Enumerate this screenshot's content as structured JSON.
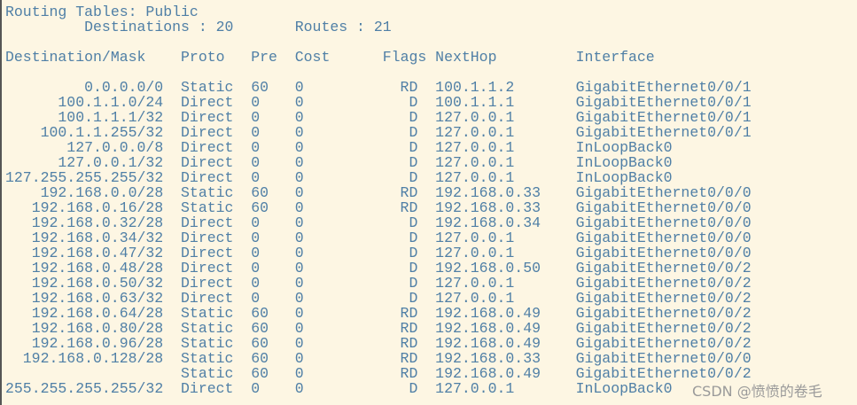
{
  "title": "Routing Tables: Public",
  "summary": {
    "destinations_label": "Destinations : 20",
    "routes_label": "Routes : 21"
  },
  "headers": {
    "dest": "Destination/Mask",
    "proto": "Proto",
    "pre": "Pre",
    "cost": "Cost",
    "flags": "Flags",
    "nexthop": "NextHop",
    "iface": "Interface"
  },
  "rows": [
    [
      "0.0.0.0/0",
      "Static",
      "60",
      "0",
      "RD",
      "100.1.1.2",
      "GigabitEthernet0/0/1"
    ],
    [
      "100.1.1.0/24",
      "Direct",
      "0",
      "0",
      "D",
      "100.1.1.1",
      "GigabitEthernet0/0/1"
    ],
    [
      "100.1.1.1/32",
      "Direct",
      "0",
      "0",
      "D",
      "127.0.0.1",
      "GigabitEthernet0/0/1"
    ],
    [
      "100.1.1.255/32",
      "Direct",
      "0",
      "0",
      "D",
      "127.0.0.1",
      "GigabitEthernet0/0/1"
    ],
    [
      "127.0.0.0/8",
      "Direct",
      "0",
      "0",
      "D",
      "127.0.0.1",
      "InLoopBack0"
    ],
    [
      "127.0.0.1/32",
      "Direct",
      "0",
      "0",
      "D",
      "127.0.0.1",
      "InLoopBack0"
    ],
    [
      "127.255.255.255/32",
      "Direct",
      "0",
      "0",
      "D",
      "127.0.0.1",
      "InLoopBack0"
    ],
    [
      "192.168.0.0/28",
      "Static",
      "60",
      "0",
      "RD",
      "192.168.0.33",
      "GigabitEthernet0/0/0"
    ],
    [
      "192.168.0.16/28",
      "Static",
      "60",
      "0",
      "RD",
      "192.168.0.33",
      "GigabitEthernet0/0/0"
    ],
    [
      "192.168.0.32/28",
      "Direct",
      "0",
      "0",
      "D",
      "192.168.0.34",
      "GigabitEthernet0/0/0"
    ],
    [
      "192.168.0.34/32",
      "Direct",
      "0",
      "0",
      "D",
      "127.0.0.1",
      "GigabitEthernet0/0/0"
    ],
    [
      "192.168.0.47/32",
      "Direct",
      "0",
      "0",
      "D",
      "127.0.0.1",
      "GigabitEthernet0/0/0"
    ],
    [
      "192.168.0.48/28",
      "Direct",
      "0",
      "0",
      "D",
      "192.168.0.50",
      "GigabitEthernet0/0/2"
    ],
    [
      "192.168.0.50/32",
      "Direct",
      "0",
      "0",
      "D",
      "127.0.0.1",
      "GigabitEthernet0/0/2"
    ],
    [
      "192.168.0.63/32",
      "Direct",
      "0",
      "0",
      "D",
      "127.0.0.1",
      "GigabitEthernet0/0/2"
    ],
    [
      "192.168.0.64/28",
      "Static",
      "60",
      "0",
      "RD",
      "192.168.0.49",
      "GigabitEthernet0/0/2"
    ],
    [
      "192.168.0.80/28",
      "Static",
      "60",
      "0",
      "RD",
      "192.168.0.49",
      "GigabitEthernet0/0/2"
    ],
    [
      "192.168.0.96/28",
      "Static",
      "60",
      "0",
      "RD",
      "192.168.0.49",
      "GigabitEthernet0/0/2"
    ],
    [
      "192.168.0.128/28",
      "Static",
      "60",
      "0",
      "RD",
      "192.168.0.33",
      "GigabitEthernet0/0/0"
    ],
    [
      "",
      "Static",
      "60",
      "0",
      "RD",
      "192.168.0.49",
      "GigabitEthernet0/0/2"
    ],
    [
      "255.255.255.255/32",
      "Direct",
      "0",
      "0",
      "D",
      "127.0.0.1",
      "InLoopBack0"
    ]
  ],
  "watermark": "CSDN @愤愤的卷毛",
  "colors": {
    "background": "#fdf6e3",
    "text": "#4f7fa6"
  }
}
